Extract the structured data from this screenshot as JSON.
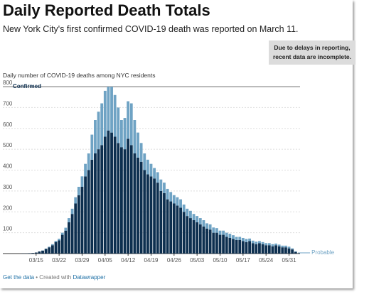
{
  "chart_data": {
    "type": "stacked-bar",
    "title": "Daily Reported Death Totals",
    "subtitle": "New York City's first confirmed COVID-19 death was reported on March 11.",
    "note": "Due to delays in reporting, recent data are incomplete.",
    "description": "Daily number of COVID-19 deaths among NYC residents",
    "footer": {
      "link1": "Get the data",
      "middle": "• Created with",
      "link2": "Datawrapper"
    },
    "categories": [
      null,
      null,
      null,
      null,
      "03/15",
      null,
      null,
      null,
      null,
      null,
      null,
      "03/22",
      null,
      null,
      null,
      null,
      null,
      null,
      "03/29",
      null,
      null,
      null,
      null,
      null,
      null,
      "04/05",
      null,
      null,
      null,
      null,
      null,
      null,
      "04/12",
      null,
      null,
      null,
      null,
      null,
      null,
      "04/19",
      null,
      null,
      null,
      null,
      null,
      null,
      "04/26",
      null,
      null,
      null,
      null,
      null,
      null,
      "05/03",
      null,
      null,
      null,
      null,
      null,
      null,
      "05/10",
      null,
      null,
      null,
      null,
      null,
      null,
      "05/17",
      null,
      null,
      null,
      null,
      null,
      null,
      "05/24",
      null,
      null,
      null,
      null,
      null,
      null,
      "05/31",
      null,
      null
    ],
    "series": [
      {
        "name": "Confirmed",
        "color": "#0d2f4f",
        "values": [
          1,
          1,
          2,
          3,
          5,
          10,
          14,
          22,
          30,
          40,
          55,
          63,
          90,
          110,
          150,
          190,
          240,
          280,
          320,
          370,
          400,
          450,
          480,
          500,
          520,
          560,
          590,
          580,
          560,
          530,
          510,
          500,
          550,
          520,
          480,
          460,
          440,
          400,
          380,
          370,
          360,
          340,
          300,
          290,
          260,
          250,
          240,
          230,
          220,
          200,
          180,
          170,
          160,
          150,
          140,
          130,
          120,
          115,
          100,
          100,
          90,
          90,
          80,
          75,
          70,
          65,
          65,
          60,
          55,
          60,
          50,
          45,
          50,
          45,
          40,
          40,
          35,
          40,
          35,
          30,
          30,
          25,
          20,
          8
        ]
      },
      {
        "name": "Probable",
        "color": "#6fa3c4",
        "values": [
          0,
          0,
          0,
          0,
          0,
          0,
          1,
          2,
          3,
          5,
          6,
          8,
          10,
          14,
          20,
          25,
          30,
          40,
          50,
          60,
          80,
          120,
          160,
          180,
          200,
          220,
          210,
          220,
          200,
          170,
          130,
          150,
          180,
          200,
          160,
          120,
          90,
          80,
          70,
          60,
          50,
          50,
          55,
          50,
          50,
          45,
          40,
          40,
          40,
          35,
          35,
          35,
          30,
          30,
          30,
          30,
          25,
          25,
          25,
          22,
          20,
          20,
          20,
          20,
          18,
          15,
          15,
          15,
          15,
          12,
          12,
          12,
          10,
          10,
          10,
          10,
          10,
          8,
          8,
          8,
          8,
          8,
          5,
          3
        ]
      }
    ],
    "ylim": [
      0,
      800
    ],
    "yticks": [
      100,
      200,
      300,
      400,
      500,
      600,
      700,
      800
    ],
    "grid": true
  }
}
